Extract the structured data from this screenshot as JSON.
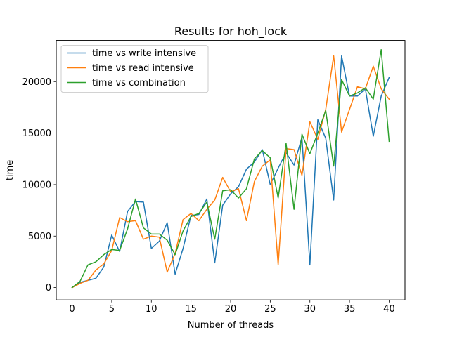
{
  "chart_data": {
    "type": "line",
    "title": "Results for hoh_lock",
    "xlabel": "Number of threads",
    "ylabel": "time",
    "xlim": [
      -2,
      42
    ],
    "ylim": [
      -1200,
      24000
    ],
    "xticks": [
      0,
      5,
      10,
      15,
      20,
      25,
      30,
      35,
      40
    ],
    "yticks": [
      0,
      5000,
      10000,
      15000,
      20000
    ],
    "grid": false,
    "legend_position": "top-left",
    "x": [
      0,
      1,
      2,
      3,
      4,
      5,
      6,
      7,
      8,
      9,
      10,
      11,
      12,
      13,
      14,
      15,
      16,
      17,
      18,
      19,
      20,
      21,
      22,
      23,
      24,
      25,
      26,
      27,
      28,
      29,
      30,
      31,
      32,
      33,
      34,
      35,
      36,
      37,
      38,
      39,
      40
    ],
    "series": [
      {
        "name": "time vs write intensive",
        "color": "#1f77b4",
        "values": [
          0,
          500,
          700,
          900,
          2000,
          5100,
          3500,
          7400,
          8350,
          8300,
          3800,
          4500,
          6300,
          1300,
          3800,
          7000,
          7100,
          8600,
          2400,
          8000,
          9100,
          9800,
          11500,
          12200,
          13400,
          10000,
          11600,
          13100,
          11900,
          14600,
          2200,
          16300,
          14500,
          8500,
          22500,
          18600,
          18600,
          19300,
          14700,
          18600,
          20400
        ]
      },
      {
        "name": "time vs read intensive",
        "color": "#ff7f0e",
        "values": [
          0,
          400,
          700,
          1700,
          2300,
          3600,
          6800,
          6400,
          6500,
          4700,
          5000,
          4900,
          1500,
          3300,
          6600,
          7200,
          6500,
          7600,
          8500,
          10700,
          9300,
          9600,
          6500,
          10300,
          11800,
          12400,
          2200,
          13500,
          13400,
          10900,
          16100,
          14400,
          17300,
          22500,
          15100,
          17300,
          19500,
          19300,
          21500,
          19300,
          18300
        ]
      },
      {
        "name": "time vs combination",
        "color": "#2ca02c",
        "values": [
          0,
          600,
          2200,
          2500,
          3200,
          3700,
          3600,
          5700,
          8600,
          5800,
          5200,
          5200,
          4600,
          3200,
          5500,
          6900,
          7200,
          8300,
          4700,
          9400,
          9500,
          8700,
          9600,
          12500,
          13300,
          12600,
          8700,
          14000,
          7600,
          14900,
          13000,
          15000,
          17200,
          11800,
          20200,
          18600,
          18900,
          19400,
          18300,
          23100,
          14200
        ]
      }
    ]
  }
}
